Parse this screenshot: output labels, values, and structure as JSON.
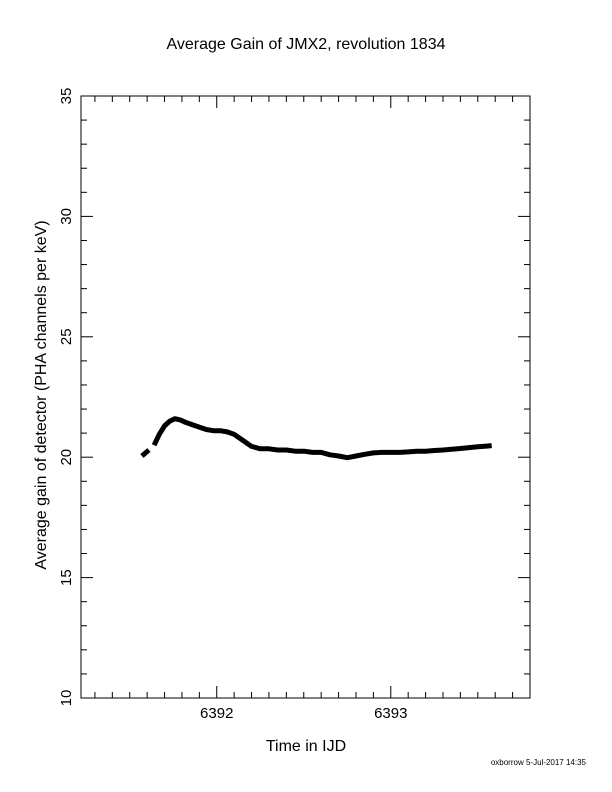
{
  "chart_data": {
    "type": "line",
    "title": "Average Gain of JMX2, revolution 1834",
    "xlabel": "Time in IJD",
    "ylabel": "Average gain of detector (PHA channels per keV)",
    "xlim": [
      6391.22,
      6393.8
    ],
    "ylim": [
      10,
      35
    ],
    "xticks": [
      6392,
      6393
    ],
    "yticks": [
      10,
      15,
      20,
      25,
      30,
      35
    ],
    "x_minor_step": 0.1,
    "y_minor_step": 1,
    "grid": false,
    "legend": "none",
    "color": "#000000",
    "series": [
      {
        "x": [
          6391.64,
          6391.67,
          6391.7,
          6391.73,
          6391.76,
          6391.79,
          6391.82,
          6391.86,
          6391.9,
          6391.94,
          6391.98,
          6392.02,
          6392.06,
          6392.1,
          6392.15,
          6392.2,
          6392.25,
          6392.3,
          6392.35,
          6392.4,
          6392.45,
          6392.5,
          6392.55,
          6392.6,
          6392.65,
          6392.7,
          6392.75,
          6392.8,
          6392.85,
          6392.9,
          6392.95,
          6393.0,
          6393.05,
          6393.1,
          6393.15,
          6393.2,
          6393.25,
          6393.3,
          6393.35,
          6393.4,
          6393.45,
          6393.5,
          6393.55,
          6393.58
        ],
        "values": [
          20.5,
          20.95,
          21.3,
          21.5,
          21.6,
          21.55,
          21.45,
          21.35,
          21.25,
          21.15,
          21.1,
          21.1,
          21.05,
          20.95,
          20.7,
          20.45,
          20.35,
          20.35,
          20.3,
          20.3,
          20.25,
          20.25,
          20.2,
          20.2,
          20.1,
          20.05,
          19.98,
          20.05,
          20.12,
          20.18,
          20.2,
          20.2,
          20.2,
          20.22,
          20.25,
          20.25,
          20.28,
          20.3,
          20.33,
          20.36,
          20.4,
          20.43,
          20.46,
          20.48
        ]
      },
      {
        "x": [
          6391.57,
          6391.61
        ],
        "values": [
          20.05,
          20.3
        ]
      }
    ]
  },
  "footer": "oxborrow  5-Jul-2017 14:35"
}
